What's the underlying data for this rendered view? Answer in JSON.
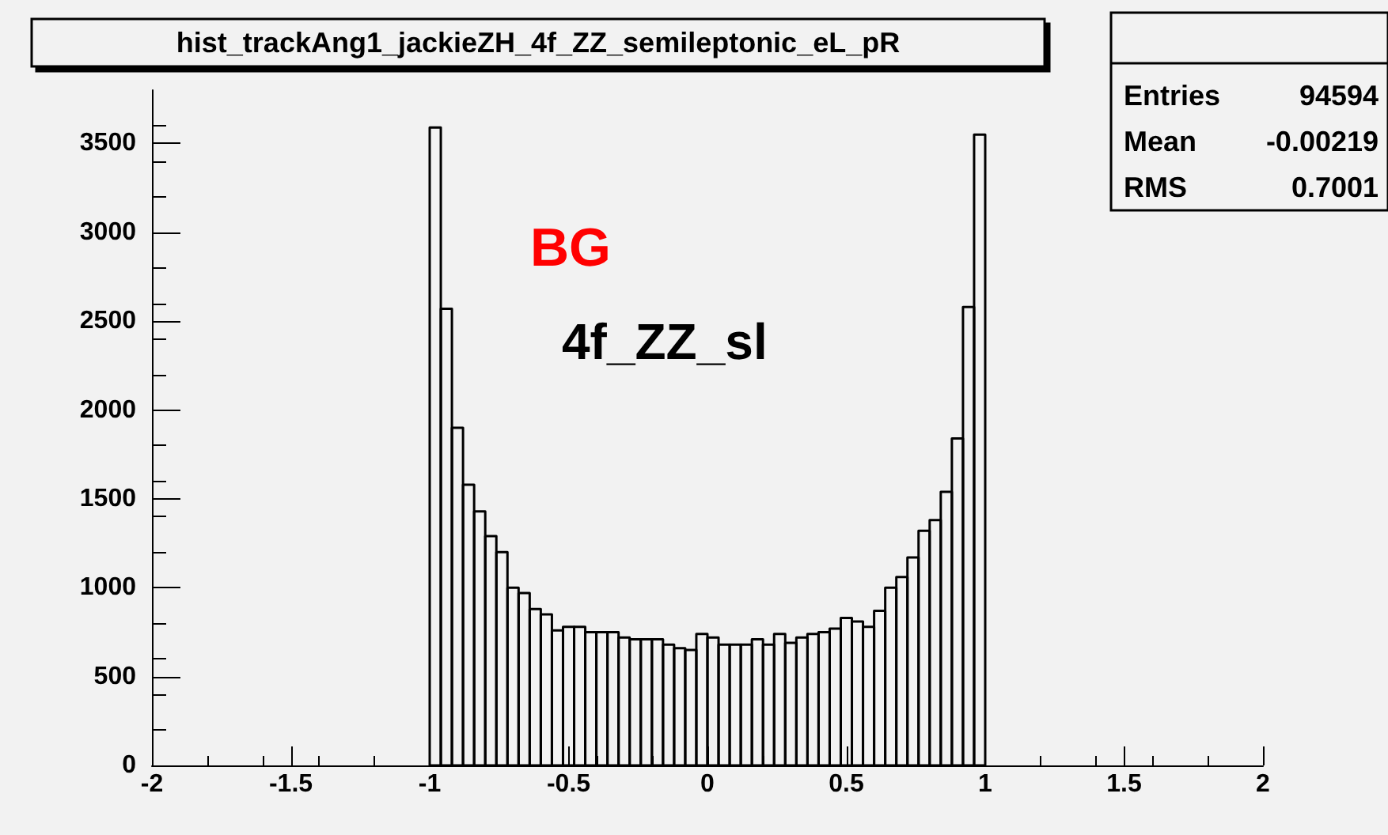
{
  "chart_data": {
    "type": "histogram",
    "title": "hist_trackAng1_jackieZH_4f_ZZ_semileptonic_eL_pR",
    "bins": [
      -1,
      -0.96,
      -0.92,
      -0.88,
      -0.84,
      -0.8,
      -0.76,
      -0.72,
      -0.68,
      -0.64,
      -0.6,
      -0.56,
      -0.52,
      -0.48,
      -0.44,
      -0.4,
      -0.36,
      -0.32,
      -0.28,
      -0.24,
      -0.2,
      -0.16,
      -0.12,
      -0.08,
      -0.04,
      0,
      0.04,
      0.08,
      0.12,
      0.16,
      0.2,
      0.24,
      0.28,
      0.32,
      0.36,
      0.4,
      0.44,
      0.48,
      0.52,
      0.56,
      0.6,
      0.64,
      0.68,
      0.72,
      0.76,
      0.8,
      0.84,
      0.88,
      0.92,
      0.96,
      1
    ],
    "values": [
      3590,
      2570,
      1900,
      1580,
      1430,
      1290,
      1200,
      1000,
      970,
      880,
      850,
      760,
      780,
      780,
      750,
      750,
      750,
      720,
      710,
      710,
      710,
      680,
      660,
      650,
      740,
      720,
      680,
      680,
      680,
      710,
      680,
      740,
      690,
      720,
      740,
      750,
      770,
      830,
      810,
      780,
      870,
      1000,
      1060,
      1170,
      1320,
      1380,
      1540,
      1840,
      2580,
      3550
    ],
    "color": "#000000",
    "xlim": [
      -2,
      2
    ],
    "xticks": [
      -2,
      -1.5,
      -1,
      -0.5,
      0,
      0.5,
      1,
      1.5,
      2
    ],
    "ylim": [
      0,
      3800
    ],
    "yticks": [
      0,
      500,
      1000,
      1500,
      2000,
      2500,
      3000,
      3500
    ],
    "annotations": [
      "BG",
      "4f_ZZ_sl",
      "Entries 94594",
      "Mean -0.00219",
      "RMS 0.7001"
    ]
  }
}
